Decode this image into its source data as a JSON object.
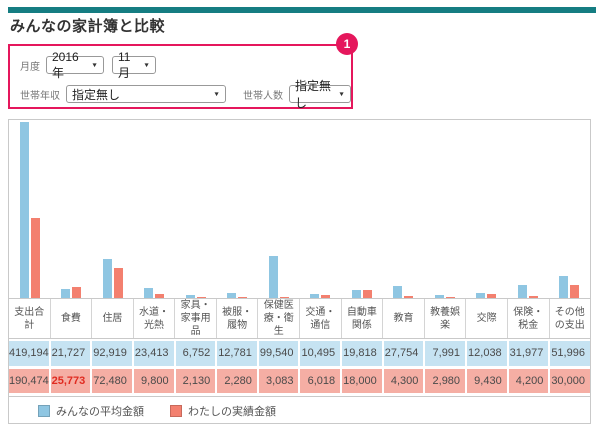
{
  "page": {
    "title": "みんなの家計簿と比較"
  },
  "icons": {
    "select_arrow": "▼"
  },
  "colors": {
    "accent_teal": "#157d82",
    "accent_pink": "#e5175c",
    "bar_blue": "#8fc6e2",
    "bar_red": "#f3806f",
    "row_blue_bg": "#c6e3f2",
    "row_red_bg": "#f5aea4",
    "highlight_red": "#e02b20"
  },
  "filters": {
    "badge": "1",
    "month_label": "月度",
    "year_value": "2016年",
    "month_value": "11月",
    "income_label": "世帯年収",
    "income_value": "指定無し",
    "persons_label": "世帯人数",
    "persons_value": "指定無し"
  },
  "chart_data": {
    "type": "bar",
    "title": "みんなの家計簿と比較",
    "categories": [
      "支出合計",
      "食費",
      "住居",
      "水道・光熱",
      "家具・家事用品",
      "被服・履物",
      "保健医療・衛生",
      "交通・通信",
      "自動車関係",
      "教育",
      "教養娯楽",
      "交際",
      "保険・税金",
      "その他の支出"
    ],
    "series": [
      {
        "name": "みんなの平均金額",
        "color": "#8fc6e2",
        "values": [
          419194,
          21727,
          92919,
          23413,
          6752,
          12781,
          99540,
          10495,
          19818,
          27754,
          7991,
          12038,
          31977,
          51996
        ]
      },
      {
        "name": "わたしの実績金額",
        "color": "#f3806f",
        "values": [
          190474,
          25773,
          72480,
          9800,
          2130,
          2280,
          3083,
          6018,
          18000,
          4300,
          2980,
          9430,
          4200,
          30000
        ]
      }
    ],
    "ylim": [
      0,
      420000
    ],
    "grid": false,
    "legend_position": "bottom",
    "highlight": {
      "series": 1,
      "index": 1
    }
  }
}
